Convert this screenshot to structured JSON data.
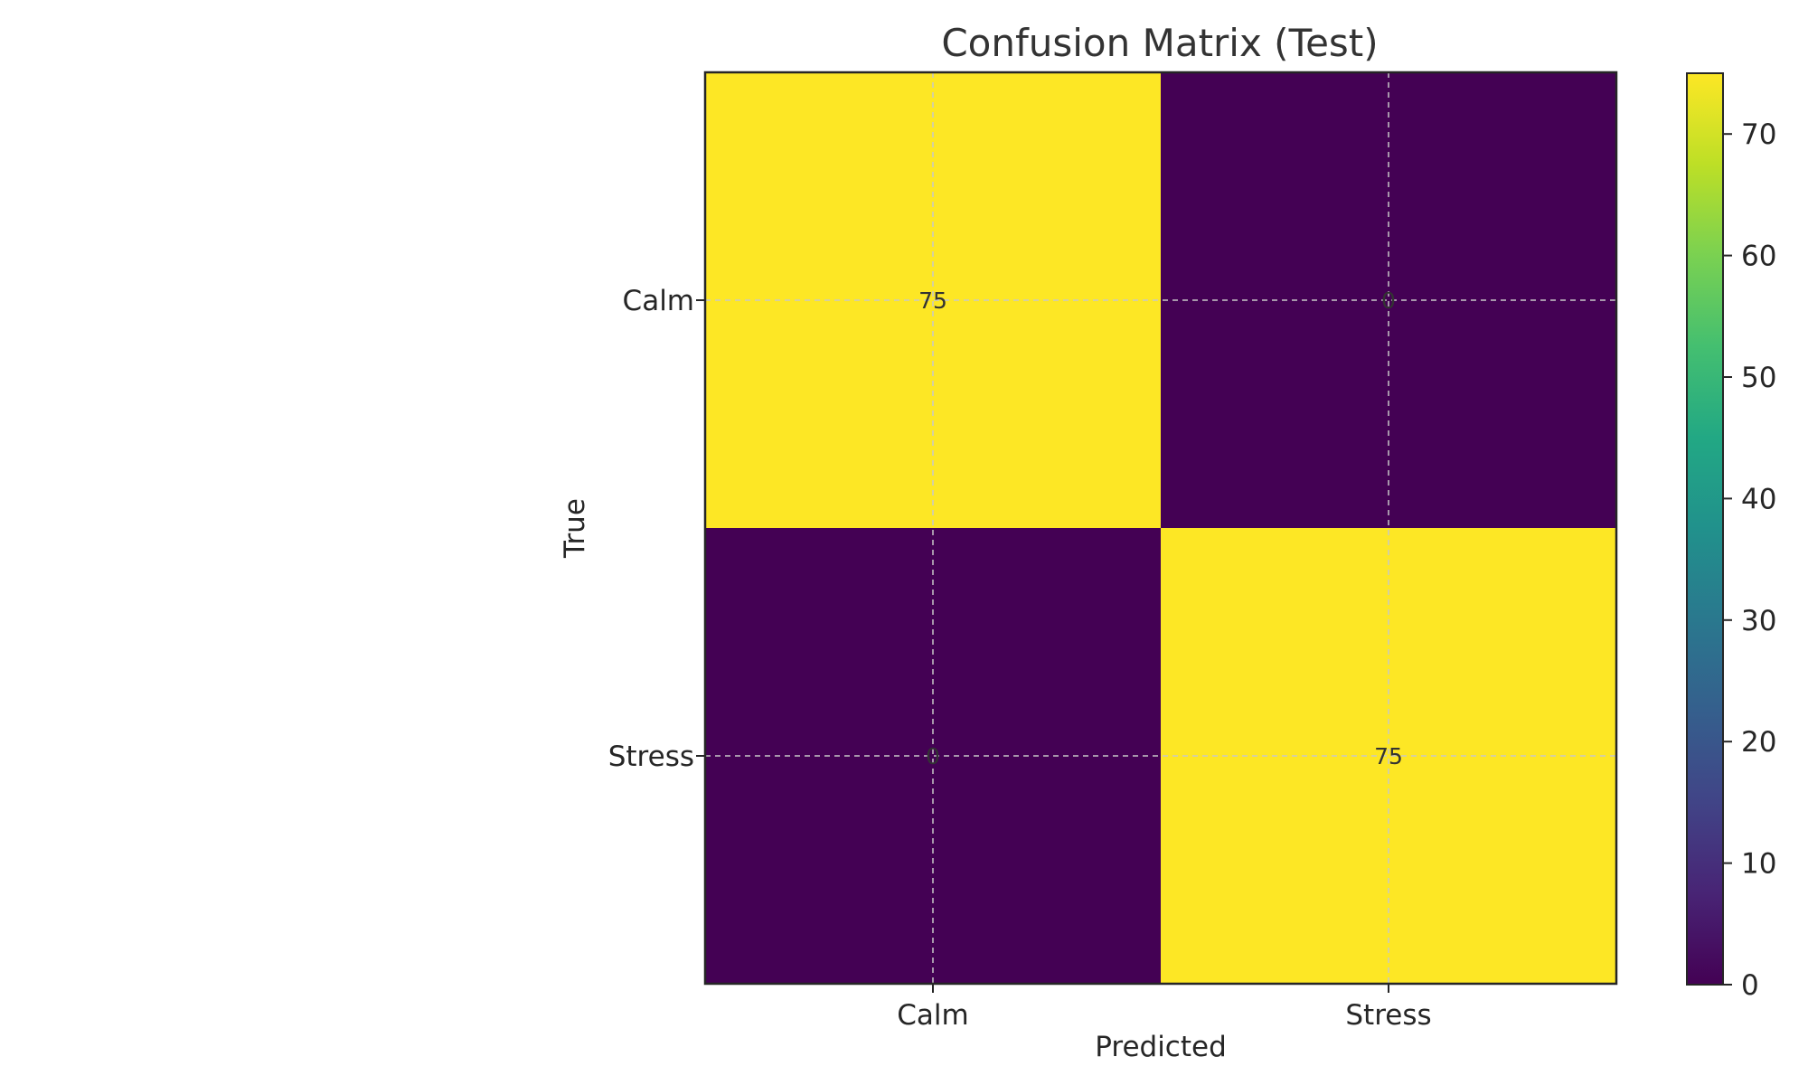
{
  "chart_data": {
    "type": "heatmap",
    "title": "Confusion Matrix (Test)",
    "xlabel": "Predicted",
    "ylabel": "True",
    "x_categories": [
      "Calm",
      "Stress"
    ],
    "y_categories": [
      "Calm",
      "Stress"
    ],
    "values": [
      [
        75,
        0
      ],
      [
        0,
        75
      ]
    ],
    "cell_labels": [
      [
        "75",
        "0"
      ],
      [
        "0",
        "75"
      ]
    ],
    "colormap": "viridis",
    "colorbar": {
      "range": [
        0,
        75
      ],
      "ticks": [
        0,
        10,
        20,
        30,
        40,
        50,
        60,
        70
      ],
      "tick_labels": [
        "0",
        "10",
        "20",
        "30",
        "40",
        "50",
        "60",
        "70"
      ]
    },
    "grid": true,
    "colors": {
      "low": "#440154",
      "high": "#fde725"
    }
  }
}
